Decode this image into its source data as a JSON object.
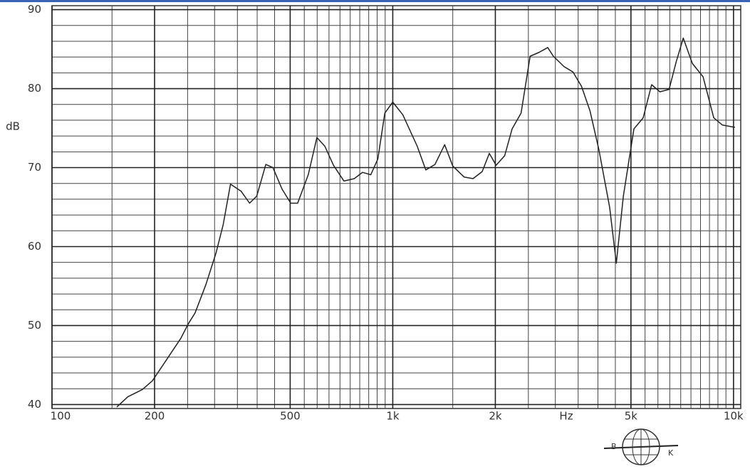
{
  "chart_data": {
    "type": "line",
    "xlabel": "Hz",
    "ylabel": "dB",
    "x": [
      155,
      167,
      184,
      197,
      217,
      239,
      251,
      263,
      283,
      303,
      318,
      334,
      359,
      380,
      399,
      424,
      445,
      473,
      502,
      526,
      565,
      599,
      632,
      670,
      719,
      771,
      815,
      862,
      904,
      948,
      1000,
      1070,
      1180,
      1250,
      1330,
      1420,
      1500,
      1620,
      1720,
      1830,
      1920,
      2010,
      2130,
      2240,
      2380,
      2530,
      2690,
      2850,
      2960,
      3180,
      3380,
      3580,
      3790,
      4030,
      4330,
      4530,
      4750,
      5100,
      5430,
      5750,
      6080,
      6470,
      6790,
      7120,
      7570,
      8140,
      8750,
      9270,
      10100
    ],
    "values": [
      39.7,
      41,
      41.9,
      43,
      45.7,
      48.4,
      50.2,
      51.6,
      55.2,
      59.2,
      62.8,
      67.9,
      67,
      65.5,
      66.4,
      70.4,
      70,
      67.3,
      65.5,
      65.5,
      69.1,
      73.8,
      72.7,
      70.3,
      68.3,
      68.6,
      69.4,
      69.1,
      71.1,
      76.9,
      78.3,
      76.7,
      72.7,
      69.7,
      70.4,
      72.9,
      70.2,
      68.8,
      68.6,
      69.5,
      71.8,
      70.3,
      71.5,
      74.9,
      76.9,
      84.1,
      84.6,
      85.2,
      84.1,
      82.8,
      82.1,
      80.3,
      77.2,
      72.2,
      65,
      57.9,
      66.4,
      74.9,
      76.3,
      80.5,
      79.6,
      79.9,
      83.4,
      86.4,
      83.2,
      81.5,
      76.3,
      75.4,
      75.1
    ],
    "color": "#222222",
    "xlog": true,
    "xlim": [
      100,
      10500
    ],
    "ylim": [
      39.5,
      90.5
    ],
    "xticks": [
      100,
      200,
      500,
      {
        "value": 1000,
        "label": "1k"
      },
      {
        "value": 2000,
        "label": "2k"
      },
      {
        "value": 5000,
        "label": "5k"
      },
      {
        "value": 10000,
        "label": "10k"
      }
    ],
    "yticks": [
      40,
      50,
      60,
      70,
      80,
      90
    ],
    "xgrid": [
      150,
      250,
      300,
      350,
      400,
      450,
      550,
      600,
      650,
      700,
      750,
      800,
      850,
      900,
      950,
      1500,
      2500,
      3000,
      3500,
      4000,
      4500,
      5500,
      6000,
      6500,
      7000,
      7500,
      8000,
      8500,
      9000,
      9500
    ],
    "ygrid": [
      42,
      44,
      46,
      48,
      52,
      54,
      56,
      58,
      62,
      64,
      66,
      68,
      72,
      74,
      76,
      78,
      82,
      84,
      86,
      88
    ],
    "grid": true,
    "logo": {
      "left": "B",
      "right": "K"
    }
  }
}
